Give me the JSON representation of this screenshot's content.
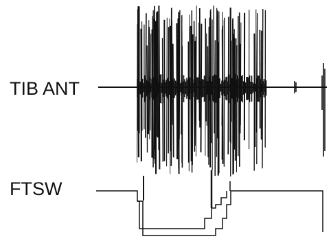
{
  "figure": {
    "tib_ant_label": "TIB ANT",
    "ftsw_label": "FTSW"
  },
  "colors": {
    "background": "#ffffff",
    "ink": "#111111"
  }
}
